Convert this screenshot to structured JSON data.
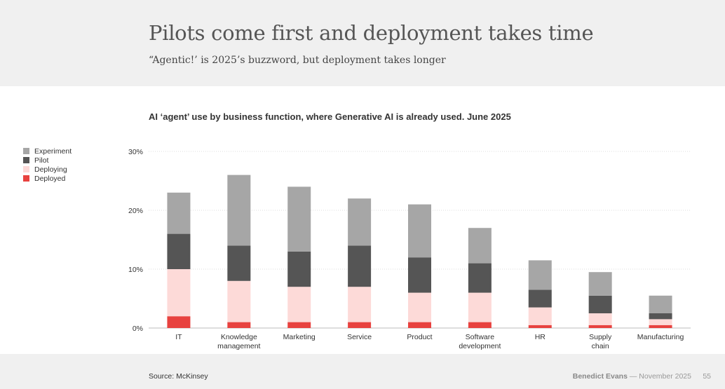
{
  "header": {
    "title": "Pilots come first and deployment takes time",
    "subtitle": "“Agentic!’ is 2025’s buzzword, but deployment takes longer"
  },
  "footer": {
    "source": "Source: McKinsey",
    "author": "Benedict Evans",
    "separator": "—",
    "date": "November 2025",
    "page": "55"
  },
  "chart_data": {
    "type": "bar",
    "stacked": true,
    "title": "AI ‘agent’ use by business function, where Generative AI is already used. June 2025",
    "ylim": [
      0,
      30
    ],
    "yticks": [
      "0%",
      "10%",
      "20%",
      "30%"
    ],
    "legend_position": "left",
    "categories": [
      [
        "IT"
      ],
      [
        "Knowledge",
        "management"
      ],
      [
        "Marketing"
      ],
      [
        "Service"
      ],
      [
        "Product"
      ],
      [
        "Software",
        "development"
      ],
      [
        "HR"
      ],
      [
        "Supply",
        "chain"
      ],
      [
        "Manufacturing"
      ]
    ],
    "series": [
      {
        "name": "Deployed",
        "color": "#e8423f",
        "values": [
          2,
          1,
          1,
          1,
          1,
          1,
          0.5,
          0.5,
          0.5
        ]
      },
      {
        "name": "Deploying",
        "color": "#fddad8",
        "values": [
          8,
          7,
          6,
          6,
          5,
          5,
          3,
          2,
          1
        ]
      },
      {
        "name": "Pilot",
        "color": "#555555",
        "values": [
          6,
          6,
          6,
          7,
          6,
          5,
          3,
          3,
          1
        ]
      },
      {
        "name": "Experiment",
        "color": "#a6a6a6",
        "values": [
          7,
          12,
          11,
          8,
          9,
          6,
          5,
          4,
          3
        ]
      }
    ],
    "legend_order": [
      "Experiment",
      "Pilot",
      "Deploying",
      "Deployed"
    ]
  }
}
